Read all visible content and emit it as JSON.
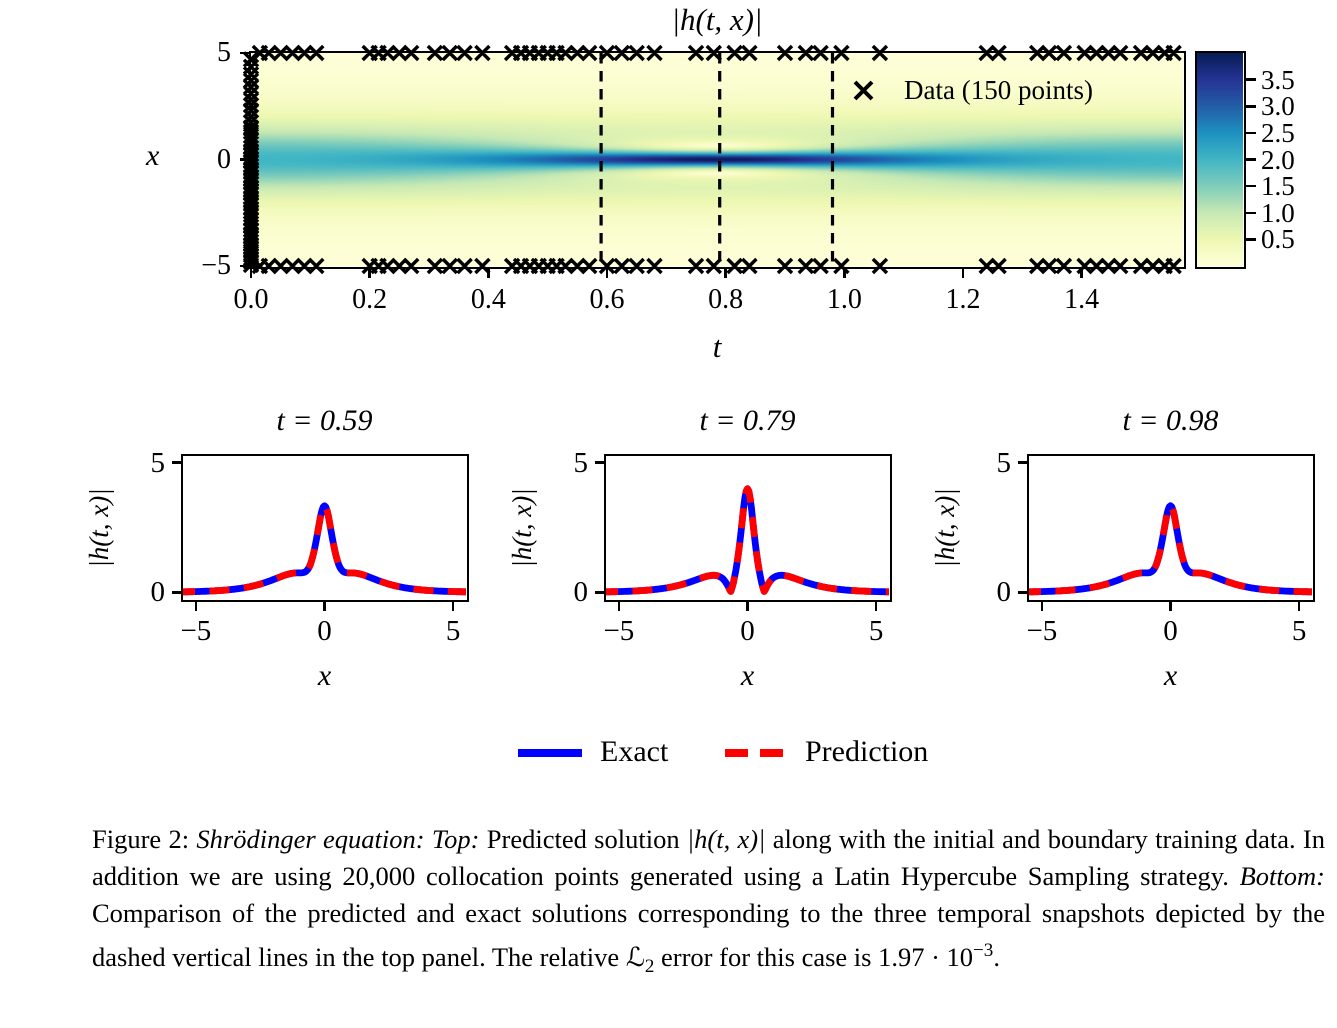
{
  "top_panel": {
    "title": "|h(t, x)|",
    "xlabel": "t",
    "ylabel": "x",
    "xticks": [
      "0.0",
      "0.2",
      "0.4",
      "0.6",
      "0.8",
      "1.0",
      "1.2",
      "1.4"
    ],
    "xtick_values": [
      0.0,
      0.2,
      0.4,
      0.6,
      0.8,
      1.0,
      1.2,
      1.4
    ],
    "yticks": [
      "5",
      "0",
      "−5"
    ],
    "ytick_values": [
      5,
      0,
      -5
    ],
    "t_range": [
      0,
      1.5708
    ],
    "x_range": [
      -5,
      5
    ],
    "legend_label": "Data (150 points)",
    "snapshot_lines": [
      0.59,
      0.79,
      0.98
    ],
    "colorbar": {
      "tick_labels": [
        "3.5",
        "3.0",
        "2.5",
        "2.0",
        "1.5",
        "1.0",
        "0.5"
      ],
      "tick_values": [
        3.5,
        3.0,
        2.5,
        2.0,
        1.5,
        1.0,
        0.5
      ],
      "vmin": 0,
      "vmax": 4,
      "colormap": "YlGnBu"
    },
    "markers": {
      "initial_x": [
        -4.95,
        -4.8,
        -4.65,
        -4.5,
        -4.3,
        -4.15,
        -4.0,
        -3.85,
        -3.65,
        -3.5,
        -3.3,
        -3.15,
        -3.0,
        -2.8,
        -2.6,
        -2.45,
        -2.3,
        -2.1,
        -1.95,
        -1.8,
        -1.6,
        -1.45,
        -1.3,
        -1.1,
        -0.95,
        -0.8,
        -0.6,
        -0.45,
        -0.3,
        -0.1,
        0.05,
        0.25,
        0.4,
        0.55,
        0.75,
        0.9,
        1.1,
        1.3,
        1.5,
        1.75,
        2.0,
        2.3,
        2.55,
        2.8,
        3.1,
        3.4,
        3.7,
        4.0,
        4.35,
        4.7
      ],
      "boundary_t": [
        0.015,
        0.03,
        0.05,
        0.07,
        0.09,
        0.11,
        0.2,
        0.215,
        0.23,
        0.25,
        0.27,
        0.31,
        0.335,
        0.36,
        0.39,
        0.44,
        0.455,
        0.47,
        0.485,
        0.5,
        0.515,
        0.53,
        0.55,
        0.57,
        0.6,
        0.625,
        0.65,
        0.68,
        0.75,
        0.78,
        0.815,
        0.84,
        0.9,
        0.935,
        0.96,
        0.995,
        1.06,
        1.24,
        1.26,
        1.325,
        1.345,
        1.37,
        1.405,
        1.425,
        1.445,
        1.465,
        1.5,
        1.52,
        1.54,
        1.555
      ]
    }
  },
  "snapshots": [
    {
      "title": "t = 0.59",
      "t": 0.59,
      "xlabel": "x",
      "ylabel": "|h(t, x)|",
      "xtick_labels": [
        "−5",
        "0",
        "5"
      ],
      "xtick_values": [
        -5,
        0,
        5
      ],
      "ytick_labels": [
        "0",
        "5"
      ],
      "ytick_values": [
        0,
        5
      ]
    },
    {
      "title": "t = 0.79",
      "t": 0.79,
      "xlabel": "x",
      "ylabel": "|h(t, x)|",
      "xtick_labels": [
        "−5",
        "0",
        "5"
      ],
      "xtick_values": [
        -5,
        0,
        5
      ],
      "ytick_labels": [
        "0",
        "5"
      ],
      "ytick_values": [
        0,
        5
      ]
    },
    {
      "title": "t = 0.98",
      "t": 0.98,
      "xlabel": "x",
      "ylabel": "|h(t, x)|",
      "xtick_labels": [
        "−5",
        "0",
        "5"
      ],
      "xtick_values": [
        -5,
        0,
        5
      ],
      "ytick_labels": [
        "0",
        "5"
      ],
      "ytick_values": [
        0,
        5
      ]
    }
  ],
  "legend": {
    "items": [
      {
        "label": "Exact",
        "color": "#0000ff",
        "style": "solid"
      },
      {
        "label": "Prediction",
        "color": "#ff0000",
        "style": "dashed"
      }
    ]
  },
  "caption": {
    "segments": [
      {
        "text": "Figure 2: ",
        "style": "roman"
      },
      {
        "text": "Shrödinger equation: Top: ",
        "style": "italic"
      },
      {
        "text": "Predicted solution ",
        "style": "roman"
      },
      {
        "text": "|h(t, x)|",
        "style": "italic"
      },
      {
        "text": " along with the initial and boundary training data. In addition we are using 20,000 collocation points generated using a Latin Hypercube Sampling strategy. ",
        "style": "roman"
      },
      {
        "text": "Bottom: ",
        "style": "italic"
      },
      {
        "text": "Comparison of the predicted and exact solutions corresponding to the three temporal snapshots depicted by the dashed vertical lines in the top panel. The relative ",
        "style": "roman"
      },
      {
        "text": "ℒ",
        "style": "script"
      },
      {
        "text": "2",
        "style": "sub"
      },
      {
        "text": " error for this case is 1.97 · 10",
        "style": "roman"
      },
      {
        "text": "−3",
        "style": "sup"
      },
      {
        "text": ".",
        "style": "roman"
      }
    ],
    "full_text": "Figure 2: Shrödinger equation: Top: Predicted solution |h(t, x)| along with the initial and boundary training data. In addition we are using 20,000 collocation points generated using a Latin Hypercube Sampling strategy. Bottom: Comparison of the predicted and exact solutions corresponding to the three temporal snapshots depicted by the dashed vertical lines in the top panel. The relative L2 error for this case is 1.97 · 10−3."
  },
  "chart_data": [
    {
      "id": "solution-heatmap",
      "type": "heatmap",
      "title": "|h(t, x)|",
      "xlabel": "t",
      "ylabel": "x",
      "x_range": [
        0,
        1.5708
      ],
      "y_range": [
        -5,
        5
      ],
      "x_ticks": [
        0.0,
        0.2,
        0.4,
        0.6,
        0.8,
        1.0,
        1.2,
        1.4
      ],
      "y_ticks": [
        5,
        0,
        -5
      ],
      "vmin": 0,
      "vmax": 4,
      "colormap": "YlGnBu",
      "colorbar_ticks": [
        3.5,
        3.0,
        2.5,
        2.0,
        1.5,
        1.0,
        0.5
      ],
      "value_model": "|h(t,x)| = 4*sqrt((cosh(3x)+3*cos(4t)*cosh(x))^2 + (3*sin(4t)*cosh(x))^2) / (cosh(4x)+4*cosh(2x)+3*cos(4t)); 2-soliton breather, |h(0,x)|=2 sech(x), maximum |h|=4 at t=pi/4, x=0",
      "snapshot_lines_t": [
        0.59,
        0.79,
        0.98
      ],
      "legend": "Data (150 points)",
      "training_points_count": 150
    },
    {
      "id": "snapshot-1",
      "type": "line",
      "title": "t = 0.59",
      "t": 0.59,
      "xlabel": "x",
      "ylabel": "|h(t, x)|",
      "xlim": [
        -5.5,
        5.5
      ],
      "ylim": [
        -0.26,
        5.26
      ],
      "xticks": [
        -5,
        0,
        5
      ],
      "yticks": [
        0,
        5
      ],
      "series": [
        {
          "name": "Exact",
          "color": "#0000ff",
          "style": "solid"
        },
        {
          "name": "Prediction",
          "color": "#ff0000",
          "style": "dashed"
        }
      ],
      "x": [
        -5,
        -4.5,
        -4,
        -3.5,
        -3,
        -2.5,
        -2,
        -1.5,
        -1,
        -0.5,
        0,
        0.5,
        1,
        1.5,
        2,
        2.5,
        3,
        3.5,
        4,
        4.5,
        5
      ],
      "abs_h": [
        0.027,
        0.044,
        0.073,
        0.12,
        0.196,
        0.315,
        0.485,
        0.672,
        0.748,
        1.222,
        3.339,
        1.222,
        0.748,
        0.672,
        0.485,
        0.315,
        0.196,
        0.12,
        0.073,
        0.044,
        0.027
      ]
    },
    {
      "id": "snapshot-2",
      "type": "line",
      "title": "t = 0.79",
      "t": 0.79,
      "xlabel": "x",
      "ylabel": "|h(t, x)|",
      "xlim": [
        -5.5,
        5.5
      ],
      "ylim": [
        -0.26,
        5.26
      ],
      "xticks": [
        -5,
        0,
        5
      ],
      "yticks": [
        0,
        5
      ],
      "series": [
        {
          "name": "Exact",
          "color": "#0000ff",
          "style": "solid"
        },
        {
          "name": "Prediction",
          "color": "#ff0000",
          "style": "dashed"
        }
      ],
      "x": [
        -5,
        -4.5,
        -4,
        -3.5,
        -3,
        -2.5,
        -2,
        -1.5,
        -1,
        -0.5,
        0,
        0.5,
        1,
        1.5,
        2,
        2.5,
        3,
        3.5,
        4,
        4.5,
        5
      ],
      "abs_h": [
        0.027,
        0.044,
        0.073,
        0.12,
        0.196,
        0.313,
        0.477,
        0.635,
        0.553,
        0.595,
        4.0,
        0.595,
        0.553,
        0.635,
        0.477,
        0.313,
        0.196,
        0.12,
        0.073,
        0.044,
        0.027
      ]
    },
    {
      "id": "snapshot-3",
      "type": "line",
      "title": "t = 0.98",
      "t": 0.98,
      "xlabel": "x",
      "ylabel": "|h(t, x)|",
      "xlim": [
        -5.5,
        5.5
      ],
      "ylim": [
        -0.26,
        5.26
      ],
      "xticks": [
        -5,
        0,
        5
      ],
      "yticks": [
        0,
        5
      ],
      "series": [
        {
          "name": "Exact",
          "color": "#0000ff",
          "style": "solid"
        },
        {
          "name": "Prediction",
          "color": "#ff0000",
          "style": "dashed"
        }
      ],
      "x": [
        -5,
        -4.5,
        -4,
        -3.5,
        -3,
        -2.5,
        -2,
        -1.5,
        -1,
        -0.5,
        0,
        0.5,
        1,
        1.5,
        2,
        2.5,
        3,
        3.5,
        4,
        4.5,
        5
      ],
      "abs_h": [
        0.027,
        0.044,
        0.073,
        0.12,
        0.196,
        0.315,
        0.485,
        0.672,
        0.748,
        1.222,
        3.343,
        1.222,
        0.748,
        0.672,
        0.485,
        0.315,
        0.196,
        0.12,
        0.073,
        0.044,
        0.027
      ]
    }
  ]
}
